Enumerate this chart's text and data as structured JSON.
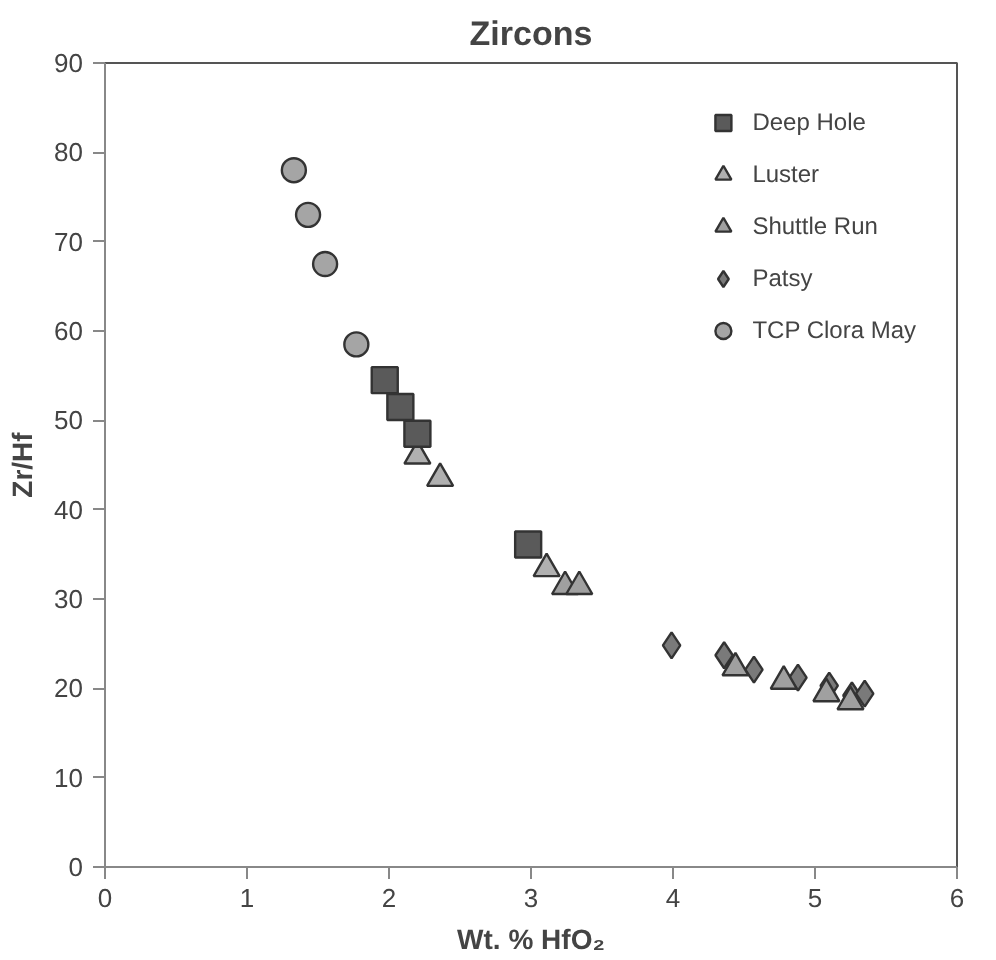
{
  "chart_data": {
    "type": "scatter",
    "title": "Zircons",
    "xlabel": "Wt. % HfO₂",
    "ylabel": "Zr/Hf",
    "xlim": [
      0,
      6
    ],
    "xticks": [
      0,
      1,
      2,
      3,
      4,
      5,
      6
    ],
    "ylim": [
      0,
      90
    ],
    "yticks": [
      0,
      10,
      20,
      30,
      40,
      50,
      60,
      70,
      80,
      90
    ],
    "grid": false,
    "legend": "top right",
    "series": [
      {
        "name": "Deep Hole",
        "marker": "square",
        "color": "#5a5a5a",
        "x": [
          1.97,
          2.08,
          2.2,
          2.98
        ],
        "values": [
          54.5,
          51.5,
          48.5,
          36.1
        ]
      },
      {
        "name": "Luster",
        "marker": "triangle",
        "color": "#b0b0b0",
        "x": [
          2.2,
          2.36,
          3.11
        ],
        "values": [
          46,
          43.5,
          33.4
        ]
      },
      {
        "name": "Shuttle Run",
        "marker": "triangle",
        "color": "#a0a0a0",
        "x": [
          3.24,
          3.34,
          4.44,
          4.78,
          5.08,
          5.25
        ],
        "values": [
          31.4,
          31.4,
          22.3,
          20.8,
          19.4,
          18.5
        ]
      },
      {
        "name": "Patsy",
        "marker": "diamond",
        "color": "#7a7a7a",
        "x": [
          3.99,
          4.36,
          4.57,
          4.88,
          5.1,
          5.26,
          5.35
        ],
        "values": [
          24.8,
          23.7,
          22.1,
          21.2,
          20.3,
          19.2,
          19.4
        ]
      },
      {
        "name": "TCP Clora May",
        "marker": "circle",
        "color": "#a5a5a5",
        "x": [
          1.33,
          1.43,
          1.55,
          1.77
        ],
        "values": [
          78,
          73,
          67.5,
          58.5
        ]
      }
    ]
  }
}
